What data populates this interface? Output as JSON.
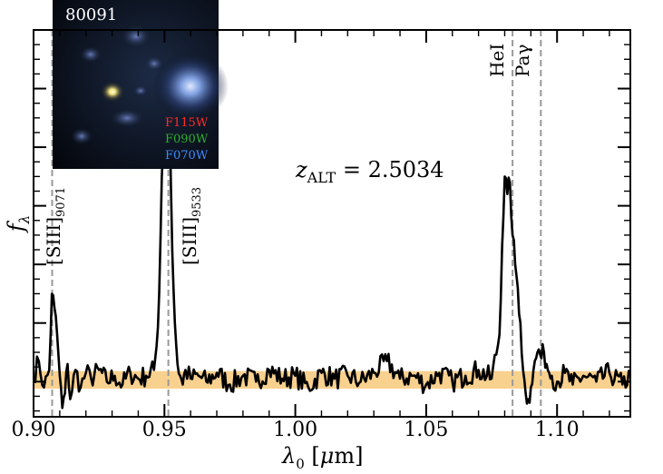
{
  "chart_data": {
    "type": "line",
    "xlabel": "λ0 [μm]",
    "ylabel": "fλ",
    "xlim": [
      0.9,
      1.128
    ],
    "ylim": [
      -0.6,
      6.0
    ],
    "xticks": [
      0.9,
      0.95,
      1.0,
      1.05,
      1.1
    ],
    "xtick_labels": [
      "0.90",
      "0.95",
      "1.00",
      "1.05",
      "1.10"
    ],
    "redshift_label": "z_ALT = 2.5034",
    "redshift_value": "2.5034",
    "continuum_band": {
      "low": -0.12,
      "high": 0.18,
      "color": "#f7c16a"
    },
    "spectrum_color": "#000000",
    "lines": [
      {
        "name": "[SIII]",
        "subscript": "9071",
        "x": 0.9071
      },
      {
        "name": "[SIII]",
        "subscript": "9533",
        "x": 0.9515
      },
      {
        "name": "HeI",
        "subscript": "",
        "x": 1.083
      },
      {
        "name": "Paγ",
        "subscript": "",
        "x": 1.0938
      }
    ],
    "series": [
      {
        "x": [
          0.9,
          0.902,
          0.904,
          0.906,
          0.907,
          0.908,
          0.909,
          0.91,
          0.911,
          0.912,
          0.913,
          0.914,
          0.916,
          0.918,
          0.92,
          0.922,
          0.925,
          0.928,
          0.931,
          0.934,
          0.937,
          0.94,
          0.943,
          0.946,
          0.947,
          0.948,
          0.949,
          0.95,
          0.9505,
          0.951,
          0.9515,
          0.952,
          0.9525,
          0.953,
          0.954,
          0.955,
          0.956,
          0.957,
          0.958,
          0.96,
          0.963,
          0.966,
          0.97,
          0.975,
          0.98,
          0.985,
          0.99,
          0.995,
          1.0,
          1.005,
          1.01,
          1.015,
          1.02,
          1.025,
          1.03,
          1.035,
          1.04,
          1.045,
          1.05,
          1.055,
          1.06,
          1.065,
          1.07,
          1.075,
          1.078,
          1.079,
          1.08,
          1.081,
          1.082,
          1.083,
          1.084,
          1.085,
          1.086,
          1.087,
          1.088,
          1.089,
          1.09,
          1.091,
          1.092,
          1.093,
          1.094,
          1.095,
          1.096,
          1.097,
          1.098,
          1.1,
          1.103,
          1.106,
          1.11,
          1.115,
          1.12,
          1.125,
          1.128
        ],
        "y": [
          0.1,
          0.35,
          -0.1,
          0.2,
          1.5,
          1.25,
          0.8,
          0.1,
          -0.45,
          -0.2,
          0.3,
          -0.3,
          0.2,
          -0.1,
          0.15,
          0.05,
          0.2,
          0.0,
          0.1,
          -0.05,
          0.15,
          0.05,
          0.1,
          0.2,
          0.6,
          1.5,
          3.5,
          4.7,
          4.0,
          5.8,
          5.2,
          4.6,
          3.3,
          2.2,
          1.0,
          0.3,
          0.1,
          -0.05,
          0.2,
          0.05,
          0.1,
          0.0,
          0.15,
          -0.05,
          0.1,
          0.0,
          0.2,
          0.05,
          0.1,
          -0.1,
          0.15,
          0.05,
          0.1,
          0.0,
          0.15,
          0.35,
          0.05,
          0.1,
          -0.05,
          0.15,
          0.0,
          0.1,
          0.2,
          0.05,
          0.8,
          2.3,
          3.5,
          3.2,
          3.4,
          2.5,
          2.0,
          1.6,
          1.0,
          0.2,
          -0.2,
          -0.3,
          -0.1,
          0.2,
          0.4,
          0.55,
          0.4,
          0.5,
          0.3,
          0.15,
          0.1,
          0.0,
          0.15,
          -0.05,
          0.1,
          0.0,
          0.15,
          -0.05,
          0.1
        ]
      }
    ]
  },
  "inset": {
    "object_id": "80091",
    "filters": [
      {
        "name": "F115W",
        "color": "#ff2a2a"
      },
      {
        "name": "F090W",
        "color": "#2fb12f"
      },
      {
        "name": "F070W",
        "color": "#3c8cff"
      }
    ]
  }
}
